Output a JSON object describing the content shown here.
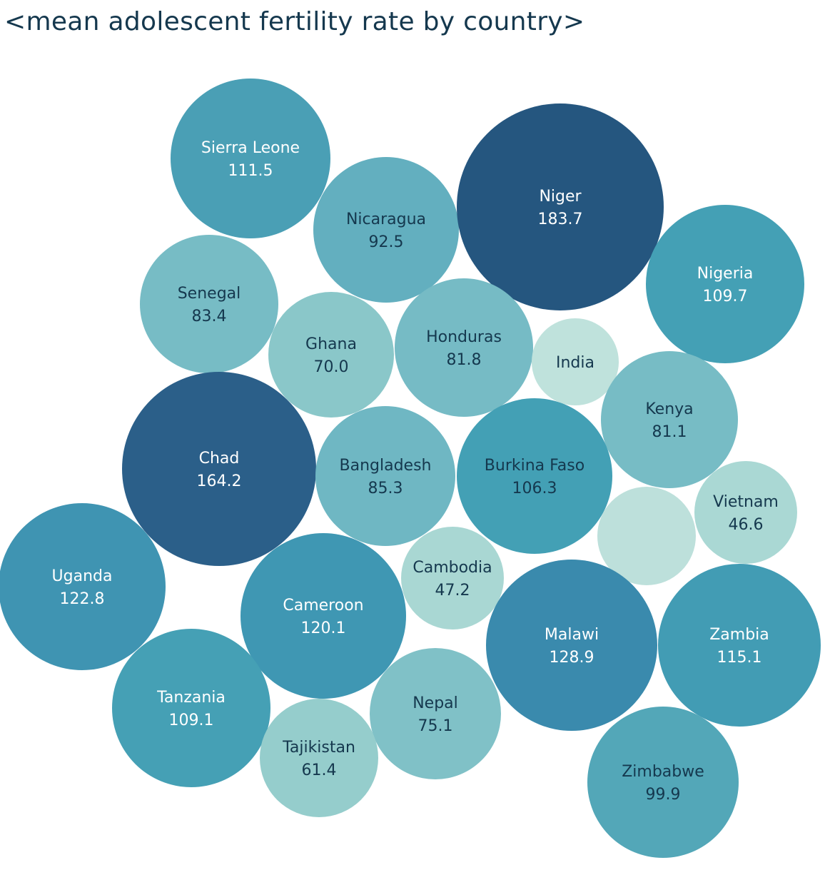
{
  "chart_data": {
    "type": "bubble",
    "title": "<mean adolescent fertility rate by country>",
    "value_format": "one decimal place",
    "bubbles": [
      {
        "country": "Sierra Leone",
        "value": 111.5,
        "label": "111.5",
        "color": "#4a9fb5",
        "text_color": "#ffffff"
      },
      {
        "country": "Nicaragua",
        "value": 92.5,
        "label": "92.5",
        "color": "#63afbf",
        "text_color": "#15384e"
      },
      {
        "country": "Niger",
        "value": 183.7,
        "label": "183.7",
        "color": "#25567f",
        "text_color": "#ffffff"
      },
      {
        "country": "Nigeria",
        "value": 109.7,
        "label": "109.7",
        "color": "#44a0b5",
        "text_color": "#ffffff"
      },
      {
        "country": "Senegal",
        "value": 83.4,
        "label": "83.4",
        "color": "#77bcc5",
        "text_color": "#15384e"
      },
      {
        "country": "Ghana",
        "value": 70.0,
        "label": "70.0",
        "color": "#8ac7c9",
        "text_color": "#15384e"
      },
      {
        "country": "Honduras",
        "value": 81.8,
        "label": "81.8",
        "color": "#76bbc5",
        "text_color": "#15384e"
      },
      {
        "country": "India",
        "value": null,
        "label": "",
        "color": "#bfe2dc",
        "text_color": "#15384e"
      },
      {
        "country": "Kenya",
        "value": 81.1,
        "label": "81.1",
        "color": "#77bcc5",
        "text_color": "#15384e"
      },
      {
        "country": "Chad",
        "value": 164.2,
        "label": "164.2",
        "color": "#2b5f89",
        "text_color": "#ffffff"
      },
      {
        "country": "Bangladesh",
        "value": 85.3,
        "label": "85.3",
        "color": "#6fb7c3",
        "text_color": "#15384e"
      },
      {
        "country": "Burkina Faso",
        "value": 106.3,
        "label": "106.3",
        "color": "#43a0b5",
        "text_color": "#15384e"
      },
      {
        "country": "",
        "value": null,
        "label": "",
        "color": "#bde0db",
        "text_color": "#15384e"
      },
      {
        "country": "Vietnam",
        "value": 46.6,
        "label": "46.6",
        "color": "#aad8d4",
        "text_color": "#15384e"
      },
      {
        "country": "Uganda",
        "value": 122.8,
        "label": "122.8",
        "color": "#3f94b2",
        "text_color": "#ffffff"
      },
      {
        "country": "Cambodia",
        "value": 47.2,
        "label": "47.2",
        "color": "#a9d7d3",
        "text_color": "#15384e"
      },
      {
        "country": "Cameroon",
        "value": 120.1,
        "label": "120.1",
        "color": "#3f97b3",
        "text_color": "#ffffff"
      },
      {
        "country": "Malawi",
        "value": 128.9,
        "label": "128.9",
        "color": "#3a8aad",
        "text_color": "#ffffff"
      },
      {
        "country": "Zambia",
        "value": 115.1,
        "label": "115.1",
        "color": "#429cb4",
        "text_color": "#ffffff"
      },
      {
        "country": "Tanzania",
        "value": 109.1,
        "label": "109.1",
        "color": "#45a0b5",
        "text_color": "#ffffff"
      },
      {
        "country": "Nepal",
        "value": 75.1,
        "label": "75.1",
        "color": "#80c1c7",
        "text_color": "#15384e"
      },
      {
        "country": "Tajikistan",
        "value": 61.4,
        "label": "61.4",
        "color": "#95cdcc",
        "text_color": "#15384e"
      },
      {
        "country": "Zimbabwe",
        "value": 99.9,
        "label": "99.9",
        "color": "#53a7b8",
        "text_color": "#15384e"
      }
    ]
  }
}
